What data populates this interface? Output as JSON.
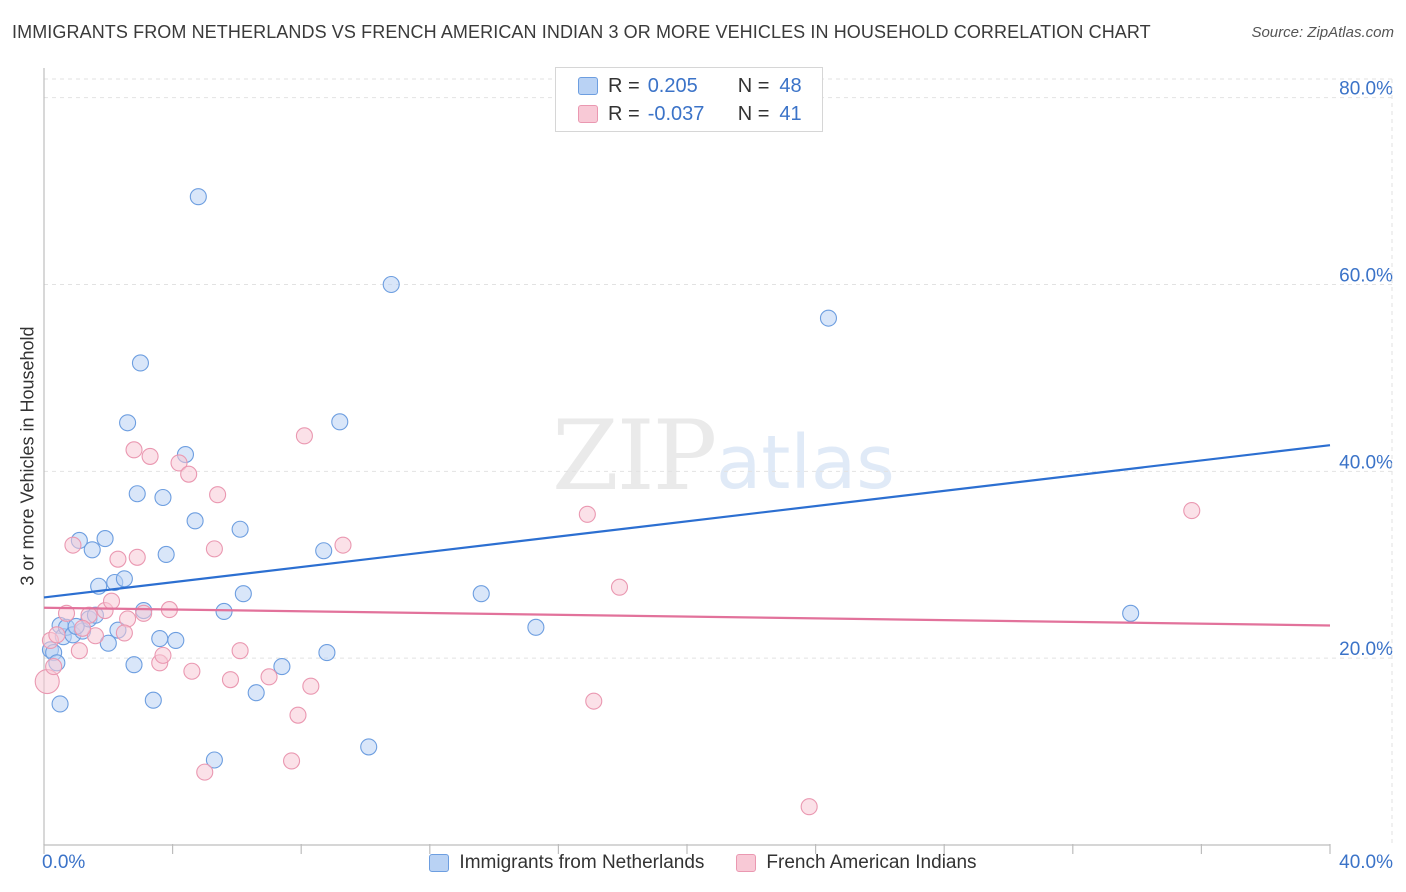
{
  "header": {
    "title": "IMMIGRANTS FROM NETHERLANDS VS FRENCH AMERICAN INDIAN 3 OR MORE VEHICLES IN HOUSEHOLD CORRELATION CHART",
    "source": "Source: ZipAtlas.com"
  },
  "watermark": {
    "zip": "ZIP",
    "atlas": "atlas"
  },
  "stats": {
    "blue": {
      "r_label": "R =",
      "r_value": "0.205",
      "n_label": "N =",
      "n_value": "48"
    },
    "pink": {
      "r_label": "R =",
      "r_value": "-0.037",
      "n_label": "N =",
      "n_value": "41"
    }
  },
  "legend": {
    "series1": "Immigrants from Netherlands",
    "series2": "French American Indians"
  },
  "chart_data": {
    "type": "scatter",
    "title": "IMMIGRANTS FROM NETHERLANDS VS FRENCH AMERICAN INDIAN 3 OR MORE VEHICLES IN HOUSEHOLD CORRELATION CHART",
    "xlabel": "",
    "ylabel": "3 or more Vehicles in Household",
    "xlim": [
      0,
      40
    ],
    "ylim": [
      0,
      82
    ],
    "x_tick_labels": {
      "min": "0.0%",
      "max": "40.0%"
    },
    "y_ticks": [
      {
        "value": 20,
        "label": "20.0%"
      },
      {
        "value": 40,
        "label": "40.0%"
      },
      {
        "value": 60,
        "label": "60.0%"
      },
      {
        "value": 80,
        "label": "80.0%"
      }
    ],
    "colors": {
      "blue_fill": "#b9d2f4",
      "blue_stroke": "#6d9ee0",
      "blue_line": "#2c6fd1",
      "pink_fill": "#f8c9d6",
      "pink_stroke": "#ea98b1",
      "pink_line": "#e2729b",
      "grid": "#e2e2e2",
      "axis": "#bdbdbd"
    },
    "series": [
      {
        "name": "Immigrants from Netherlands",
        "color": "blue",
        "trend": {
          "x": [
            0,
            40
          ],
          "y": [
            26.5,
            42.8
          ]
        },
        "points": [
          [
            0.2,
            20.9
          ],
          [
            0.3,
            20.6
          ],
          [
            0.4,
            19.5
          ],
          [
            0.5,
            23.5
          ],
          [
            0.6,
            22.3
          ],
          [
            0.7,
            23.3
          ],
          [
            0.9,
            22.5
          ],
          [
            1.1,
            32.6
          ],
          [
            1.2,
            22.9
          ],
          [
            1.4,
            24.2
          ],
          [
            1.5,
            31.6
          ],
          [
            1.6,
            24.6
          ],
          [
            1.7,
            27.7
          ],
          [
            1.9,
            32.8
          ],
          [
            2.0,
            21.6
          ],
          [
            2.2,
            28.1
          ],
          [
            2.3,
            23.0
          ],
          [
            2.5,
            28.5
          ],
          [
            2.6,
            45.2
          ],
          [
            2.8,
            19.3
          ],
          [
            2.9,
            37.6
          ],
          [
            3.0,
            51.6
          ],
          [
            3.1,
            25.1
          ],
          [
            3.4,
            15.5
          ],
          [
            3.6,
            22.1
          ],
          [
            3.8,
            31.1
          ],
          [
            4.1,
            21.9
          ],
          [
            4.4,
            41.8
          ],
          [
            4.7,
            34.7
          ],
          [
            4.8,
            69.4
          ],
          [
            5.3,
            9.1
          ],
          [
            5.6,
            25.0
          ],
          [
            6.1,
            33.8
          ],
          [
            6.2,
            26.9
          ],
          [
            6.6,
            16.3
          ],
          [
            7.4,
            19.1
          ],
          [
            8.7,
            31.5
          ],
          [
            8.8,
            20.6
          ],
          [
            9.2,
            45.3
          ],
          [
            10.1,
            10.5
          ],
          [
            10.8,
            60.0
          ],
          [
            13.6,
            26.9
          ],
          [
            15.3,
            23.3
          ],
          [
            24.4,
            56.4
          ],
          [
            33.8,
            24.8
          ],
          [
            0.5,
            15.1
          ],
          [
            3.7,
            37.2
          ],
          [
            1.0,
            23.4
          ]
        ]
      },
      {
        "name": "French American Indians",
        "color": "pink",
        "trend": {
          "x": [
            0,
            40
          ],
          "y": [
            25.4,
            23.5
          ]
        },
        "points": [
          [
            0.1,
            17.5
          ],
          [
            0.2,
            21.9
          ],
          [
            0.4,
            22.5
          ],
          [
            0.7,
            24.8
          ],
          [
            0.9,
            32.1
          ],
          [
            1.1,
            20.8
          ],
          [
            1.4,
            24.6
          ],
          [
            1.6,
            22.4
          ],
          [
            1.9,
            25.1
          ],
          [
            2.1,
            26.1
          ],
          [
            2.3,
            30.6
          ],
          [
            2.6,
            24.2
          ],
          [
            2.8,
            42.3
          ],
          [
            2.9,
            30.8
          ],
          [
            3.1,
            24.8
          ],
          [
            3.3,
            41.6
          ],
          [
            3.6,
            19.5
          ],
          [
            3.7,
            20.3
          ],
          [
            3.9,
            25.2
          ],
          [
            4.2,
            40.9
          ],
          [
            4.5,
            39.7
          ],
          [
            4.6,
            18.6
          ],
          [
            5.0,
            7.8
          ],
          [
            5.3,
            31.7
          ],
          [
            5.4,
            37.5
          ],
          [
            5.8,
            17.7
          ],
          [
            6.1,
            20.8
          ],
          [
            7.0,
            18.0
          ],
          [
            7.7,
            9.0
          ],
          [
            7.9,
            13.9
          ],
          [
            8.1,
            43.8
          ],
          [
            8.3,
            17.0
          ],
          [
            9.3,
            32.1
          ],
          [
            16.9,
            35.4
          ],
          [
            17.1,
            15.4
          ],
          [
            17.9,
            27.6
          ],
          [
            23.8,
            4.1
          ],
          [
            35.7,
            35.8
          ],
          [
            0.3,
            19.1
          ],
          [
            1.2,
            23.2
          ],
          [
            2.5,
            22.7
          ]
        ]
      }
    ]
  }
}
